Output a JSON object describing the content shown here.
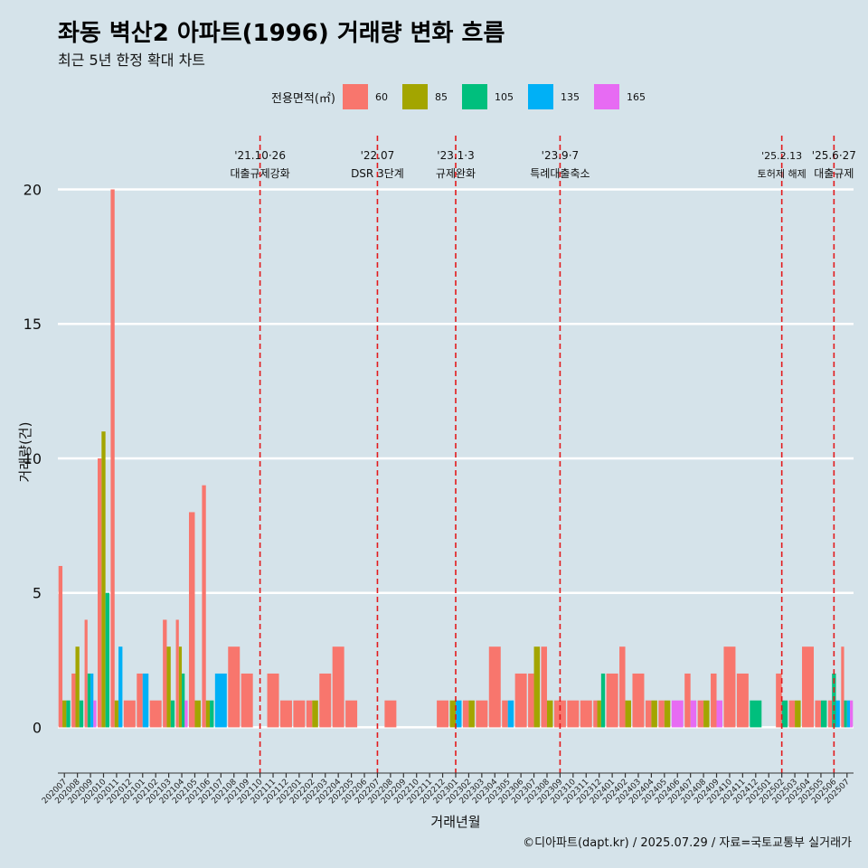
{
  "header": {
    "title": "좌동 벽산2 아파트(1996) 거래량 변화 흐름",
    "subtitle": "최근 5년 한정 확대 차트"
  },
  "footer": {
    "caption": "©디아파트(dapt.kr) / 2025.07.29 / 자료=국토교통부 실거래가"
  },
  "colors": {
    "background": "#d5e3ea",
    "gridline": "#ffffff",
    "event_line": "#e31a1c",
    "series": {
      "60": "#f8766d",
      "85": "#a3a500",
      "105": "#00bf7d",
      "135": "#00b0f6",
      "165": "#e76bf3"
    }
  },
  "chart_data": {
    "type": "bar",
    "title": "좌동 벽산2 아파트(1996) 거래량 변화 흐름",
    "subtitle": "최근 5년 한정 확대 차트",
    "xlabel": "거래년월",
    "ylabel": "거래량(건)",
    "ylim": [
      -1.7,
      22
    ],
    "yticks": [
      0,
      5,
      10,
      15,
      20
    ],
    "grid": true,
    "legend": {
      "title": "전용면적(㎡)",
      "position": "top",
      "entries": [
        "60",
        "85",
        "105",
        "135",
        "165"
      ]
    },
    "categories": [
      "202007",
      "202008",
      "202009",
      "202010",
      "202011",
      "202012",
      "202101",
      "202102",
      "202103",
      "202104",
      "202105",
      "202106",
      "202107",
      "202108",
      "202109",
      "202110",
      "202111",
      "202112",
      "202201",
      "202202",
      "202203",
      "202204",
      "202205",
      "202206",
      "202207",
      "202208",
      "202209",
      "202210",
      "202211",
      "202212",
      "202301",
      "202302",
      "202303",
      "202304",
      "202305",
      "202306",
      "202307",
      "202308",
      "202309",
      "202310",
      "202311",
      "202312",
      "202401",
      "202402",
      "202403",
      "202404",
      "202405",
      "202406",
      "202407",
      "202408",
      "202409",
      "202410",
      "202411",
      "202412",
      "202501",
      "202502",
      "202503",
      "202504",
      "202505",
      "202506",
      "202507"
    ],
    "series": [
      {
        "name": "60",
        "values": [
          6,
          2,
          4,
          10,
          20,
          1,
          2,
          1,
          4,
          4,
          8,
          9,
          0,
          3,
          2,
          0,
          2,
          1,
          1,
          1,
          2,
          3,
          1,
          0,
          0,
          1,
          0,
          0,
          0,
          1,
          0,
          1,
          1,
          3,
          1,
          2,
          2,
          3,
          1,
          1,
          1,
          1,
          2,
          3,
          2,
          1,
          1,
          0,
          2,
          1,
          2,
          3,
          2,
          0,
          0,
          2,
          1,
          3,
          1,
          1,
          3
        ]
      },
      {
        "name": "85",
        "values": [
          1,
          3,
          0,
          11,
          1,
          0,
          0,
          0,
          3,
          3,
          1,
          1,
          0,
          0,
          0,
          0,
          0,
          0,
          0,
          1,
          0,
          0,
          0,
          0,
          0,
          0,
          0,
          0,
          0,
          0,
          1,
          1,
          0,
          0,
          0,
          0,
          3,
          1,
          0,
          0,
          0,
          1,
          0,
          1,
          0,
          1,
          1,
          0,
          0,
          1,
          0,
          0,
          0,
          0,
          0,
          0,
          1,
          0,
          0,
          0,
          0
        ]
      },
      {
        "name": "105",
        "values": [
          1,
          1,
          2,
          5,
          0,
          0,
          0,
          0,
          1,
          2,
          0,
          1,
          0,
          0,
          0,
          0,
          0,
          0,
          0,
          0,
          0,
          0,
          0,
          0,
          0,
          0,
          0,
          0,
          0,
          0,
          0,
          0,
          0,
          0,
          0,
          0,
          0,
          0,
          0,
          0,
          0,
          2,
          0,
          0,
          0,
          0,
          0,
          0,
          0,
          0,
          0,
          0,
          0,
          1,
          0,
          1,
          0,
          0,
          1,
          2,
          1
        ]
      },
      {
        "name": "135",
        "values": [
          0,
          0,
          2,
          0,
          3,
          0,
          2,
          0,
          0,
          0,
          0,
          0,
          2,
          0,
          0,
          0,
          0,
          0,
          0,
          0,
          0,
          0,
          0,
          0,
          0,
          0,
          0,
          0,
          0,
          0,
          1,
          0,
          0,
          0,
          1,
          0,
          0,
          0,
          0,
          0,
          0,
          0,
          0,
          0,
          0,
          0,
          0,
          0,
          0,
          0,
          0,
          0,
          0,
          0,
          0,
          0,
          0,
          0,
          0,
          1,
          1
        ]
      },
      {
        "name": "165",
        "values": [
          0,
          0,
          1,
          0,
          0,
          0,
          0,
          0,
          0,
          1,
          0,
          0,
          0,
          0,
          0,
          0,
          0,
          0,
          0,
          0,
          0,
          0,
          0,
          0,
          0,
          0,
          0,
          0,
          0,
          0,
          0,
          0,
          0,
          0,
          0,
          0,
          0,
          0,
          0,
          0,
          0,
          0,
          0,
          0,
          0,
          0,
          0,
          1,
          1,
          0,
          1,
          0,
          0,
          0,
          0,
          0,
          0,
          0,
          0,
          0,
          1
        ]
      }
    ],
    "annotations": [
      {
        "x": "202110",
        "date": "'21.10·26",
        "label": "대출규제강화"
      },
      {
        "x": "202207",
        "date": "'22.07",
        "label": "DSR 3단계"
      },
      {
        "x": "202301",
        "date": "'23.1·3",
        "label": "규제완화"
      },
      {
        "x": "202309",
        "date": "'23.9·7",
        "label": "특례대출축소"
      },
      {
        "x": "202502",
        "date": "'25.2.13",
        "label": "토허제 해제"
      },
      {
        "x": "202506",
        "date": "'25.6·27",
        "label": "대출규제"
      }
    ]
  }
}
